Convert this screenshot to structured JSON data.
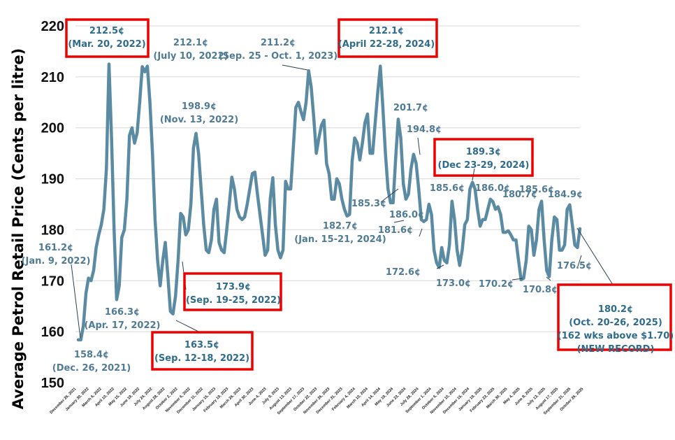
{
  "chart_data": {
    "type": "line",
    "ylabel": "Average Petrol Retail Price (Cents per litre)",
    "ylim": [
      150,
      220
    ],
    "yticks": [
      150,
      160,
      170,
      180,
      190,
      200,
      210,
      220
    ],
    "grid": "horizontal",
    "line_color": "#5b8aa3",
    "x_tick_labels": [
      "December 26, 2021",
      "January 30, 2022",
      "March 6, 2022",
      "April 10, 2022",
      "May 15, 2022",
      "June 19, 2022",
      "July 24, 2022",
      "August 28, 2022",
      "October 2, 2022",
      "November 6, 2022",
      "December 11, 2022",
      "January 15, 2023",
      "February 19, 2023",
      "March 26, 2023",
      "April 30, 2023",
      "June 4, 2023",
      "July 9, 2023",
      "August 13, 2023",
      "September 17, 2023",
      "October 22, 2023",
      "November 26, 2023",
      "December 31, 2023",
      "February 4, 2024",
      "March 10, 2024",
      "April 14, 2024",
      "May 19, 2024",
      "June 23, 2024",
      "July 28, 2024",
      "September 1, 2024",
      "October 6, 2024",
      "November 10, 2024",
      "December 15, 2024",
      "January 19, 2025",
      "February 23, 2025",
      "March 30, 2025",
      "May 4, 2025",
      "June 8, 2025",
      "July 13, 2025",
      "August 17, 2025",
      "September 21, 2025",
      "October 26, 2025"
    ],
    "series": [
      {
        "values": [
          158.4,
          158.4,
          161.2,
          167.5,
          170.5,
          170,
          172,
          176.5,
          179,
          181,
          184,
          192,
          212.5,
          198,
          180,
          166.3,
          169,
          178.5,
          180,
          186,
          198.5,
          200,
          197,
          199,
          205,
          212,
          211,
          212.1,
          205,
          195,
          182,
          174,
          169,
          173.9,
          177.5,
          171,
          164,
          163.5,
          167,
          174,
          183.2,
          182.5,
          179,
          180,
          185,
          196,
          198.9,
          195,
          188,
          181,
          176,
          175.5,
          178,
          184,
          186,
          177.5,
          176,
          175.5,
          180,
          185,
          190.3,
          188,
          184,
          182.5,
          182,
          182.5,
          185,
          188,
          191,
          191.3,
          187,
          183,
          179,
          175,
          176,
          186,
          190.2,
          181,
          176,
          174.5,
          176,
          189.5,
          188,
          188,
          196,
          204,
          205,
          203.2,
          201.6,
          205,
          211.2,
          208,
          202,
          195,
          198,
          200.5,
          201.5,
          193,
          191,
          186,
          186,
          190,
          189,
          186,
          184,
          182.7,
          183,
          193.5,
          198,
          197,
          193.7,
          197,
          201,
          202.7,
          195,
          195,
          201,
          207,
          212.1,
          204,
          195,
          188,
          185.3,
          185.3,
          194,
          201.7,
          198,
          189,
          186.0,
          187,
          192,
          194.8,
          193,
          188,
          182,
          181.6,
          182,
          185,
          183,
          176,
          173.5,
          172.6,
          176.5,
          174,
          173.5,
          177,
          185.6,
          182,
          176,
          173.0,
          176,
          181,
          182,
          188,
          189.3,
          188,
          184,
          180.7,
          182,
          182,
          184,
          186,
          185.5,
          184,
          184.5,
          183,
          179.5,
          179.5,
          179.8,
          179,
          178,
          178,
          174,
          170.2,
          170.5,
          174,
          180.7,
          180,
          175,
          178,
          184,
          185.6,
          178,
          172,
          170.8,
          178,
          182.5,
          182,
          176,
          176,
          177,
          184,
          184.9,
          181,
          177,
          176.5,
          180.2
        ]
      }
    ],
    "annotations": [
      {
        "id": "a1",
        "lines": [
          "212.5¢",
          "(Mar. 20, 2022)"
        ],
        "boxed": true
      },
      {
        "id": "a2",
        "lines": [
          "212.1¢",
          "(July 10, 2022)"
        ],
        "boxed": false
      },
      {
        "id": "a3",
        "lines": [
          "211.2¢",
          "(Sep. 25 - Oct. 1, 2023)"
        ],
        "boxed": false
      },
      {
        "id": "a4",
        "lines": [
          "212.1¢",
          "(April 22-28, 2024)"
        ],
        "boxed": true
      },
      {
        "id": "a5",
        "lines": [
          "198.9¢",
          "(Nov. 13, 2022)"
        ],
        "boxed": false
      },
      {
        "id": "a6",
        "lines": [
          "201.7¢"
        ],
        "boxed": false
      },
      {
        "id": "a7",
        "lines": [
          "194.8¢"
        ],
        "boxed": false
      },
      {
        "id": "a8",
        "lines": [
          "189.3¢",
          "(Dec 23-29, 2024)"
        ],
        "boxed": true
      },
      {
        "id": "a9",
        "lines": [
          "161.2¢",
          "(Jan. 9, 2022)"
        ],
        "boxed": false
      },
      {
        "id": "a10",
        "lines": [
          "185.3¢"
        ],
        "boxed": false
      },
      {
        "id": "a11",
        "lines": [
          "186.0¢"
        ],
        "boxed": false
      },
      {
        "id": "a12",
        "lines": [
          "185.6¢"
        ],
        "boxed": false
      },
      {
        "id": "a13",
        "lines": [
          "186.0¢"
        ],
        "boxed": false
      },
      {
        "id": "a14",
        "lines": [
          "185.6¢"
        ],
        "boxed": false
      },
      {
        "id": "a15",
        "lines": [
          "184.9¢"
        ],
        "boxed": false
      },
      {
        "id": "a16",
        "lines": [
          "182.7¢",
          "(Jan. 15-21, 2024)"
        ],
        "boxed": false
      },
      {
        "id": "a17",
        "lines": [
          "181.6¢"
        ],
        "boxed": false
      },
      {
        "id": "a18",
        "lines": [
          "180.7¢"
        ],
        "boxed": false
      },
      {
        "id": "a19",
        "lines": [
          "166.3¢",
          "(Apr. 17, 2022)"
        ],
        "boxed": false
      },
      {
        "id": "a20",
        "lines": [
          "173.9¢",
          "(Sep. 19-25, 2022)"
        ],
        "boxed": true
      },
      {
        "id": "a21",
        "lines": [
          "172.6¢"
        ],
        "boxed": false
      },
      {
        "id": "a22",
        "lines": [
          "173.0¢"
        ],
        "boxed": false
      },
      {
        "id": "a23",
        "lines": [
          "170.2¢"
        ],
        "boxed": false
      },
      {
        "id": "a24",
        "lines": [
          "170.8¢"
        ],
        "boxed": false
      },
      {
        "id": "a25",
        "lines": [
          "176.5¢"
        ],
        "boxed": false
      },
      {
        "id": "a26",
        "lines": [
          "158.4¢",
          "(Dec. 26, 2021)"
        ],
        "boxed": false
      },
      {
        "id": "a27",
        "lines": [
          "163.5¢",
          "(Sep. 12-18, 2022)"
        ],
        "boxed": true
      },
      {
        "id": "a28",
        "lines": [
          "180.2¢",
          "(Oct. 20-26, 2025)",
          "(162 wks above $1.70)",
          "(NEW RECORD)"
        ],
        "boxed": true
      }
    ]
  }
}
